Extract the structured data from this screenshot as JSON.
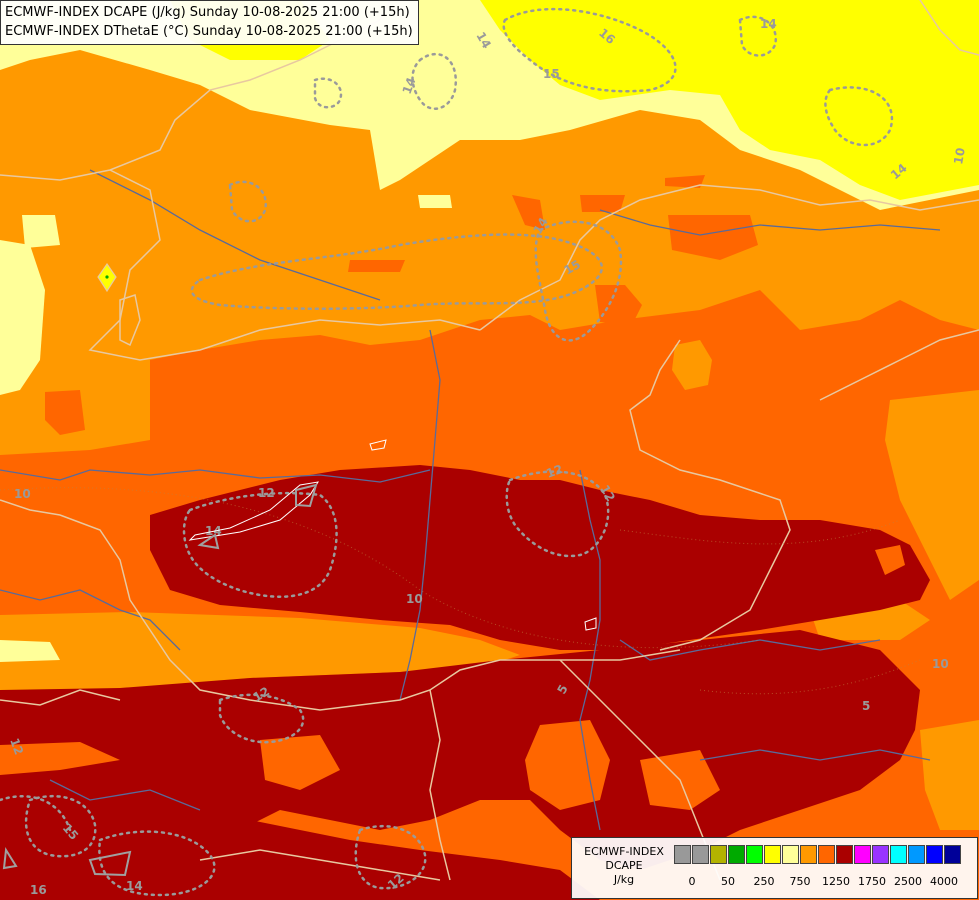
{
  "map": {
    "title_lines": [
      "ECMWF-INDEX DCAPE (J/kg) Sunday 10-08-2025 21:00 (+15h)",
      "ECMWF-INDEX DThetaE (°C) Sunday 10-08-2025 21:00 (+15h)"
    ],
    "fill_colors": {
      "250": "#ffff00",
      "500": "#ffff99",
      "750": "#ff9900",
      "1000": "#ff6600",
      "1250": "#aa0000"
    },
    "border_color": "#e8c8a0",
    "river_color": "#5a6a9a",
    "contour_color": "#9a9a9a",
    "contour_labels": [
      "14",
      "16",
      "15",
      "14",
      "14",
      "14",
      "14",
      "15",
      "10",
      "12",
      "14",
      "12",
      "12",
      "10",
      "10",
      "5",
      "5",
      "12",
      "12",
      "15",
      "14",
      "16",
      "12",
      "10",
      "5"
    ]
  },
  "legend": {
    "title_line1": "ECMWF-INDEX",
    "title_line2": "DCAPE",
    "units": "J/kg",
    "swatch_colors": [
      "#999999",
      "#999999",
      "#b3b300",
      "#00aa00",
      "#00ff00",
      "#ffff00",
      "#ffff99",
      "#ff9900",
      "#ff6600",
      "#aa0000",
      "#ff00ff",
      "#9933ff",
      "#00ffff",
      "#0099ff",
      "#0000ff",
      "#000099"
    ],
    "ticks": [
      "0",
      "50",
      "250",
      "750",
      "1250",
      "1750",
      "2500",
      "4000"
    ]
  }
}
